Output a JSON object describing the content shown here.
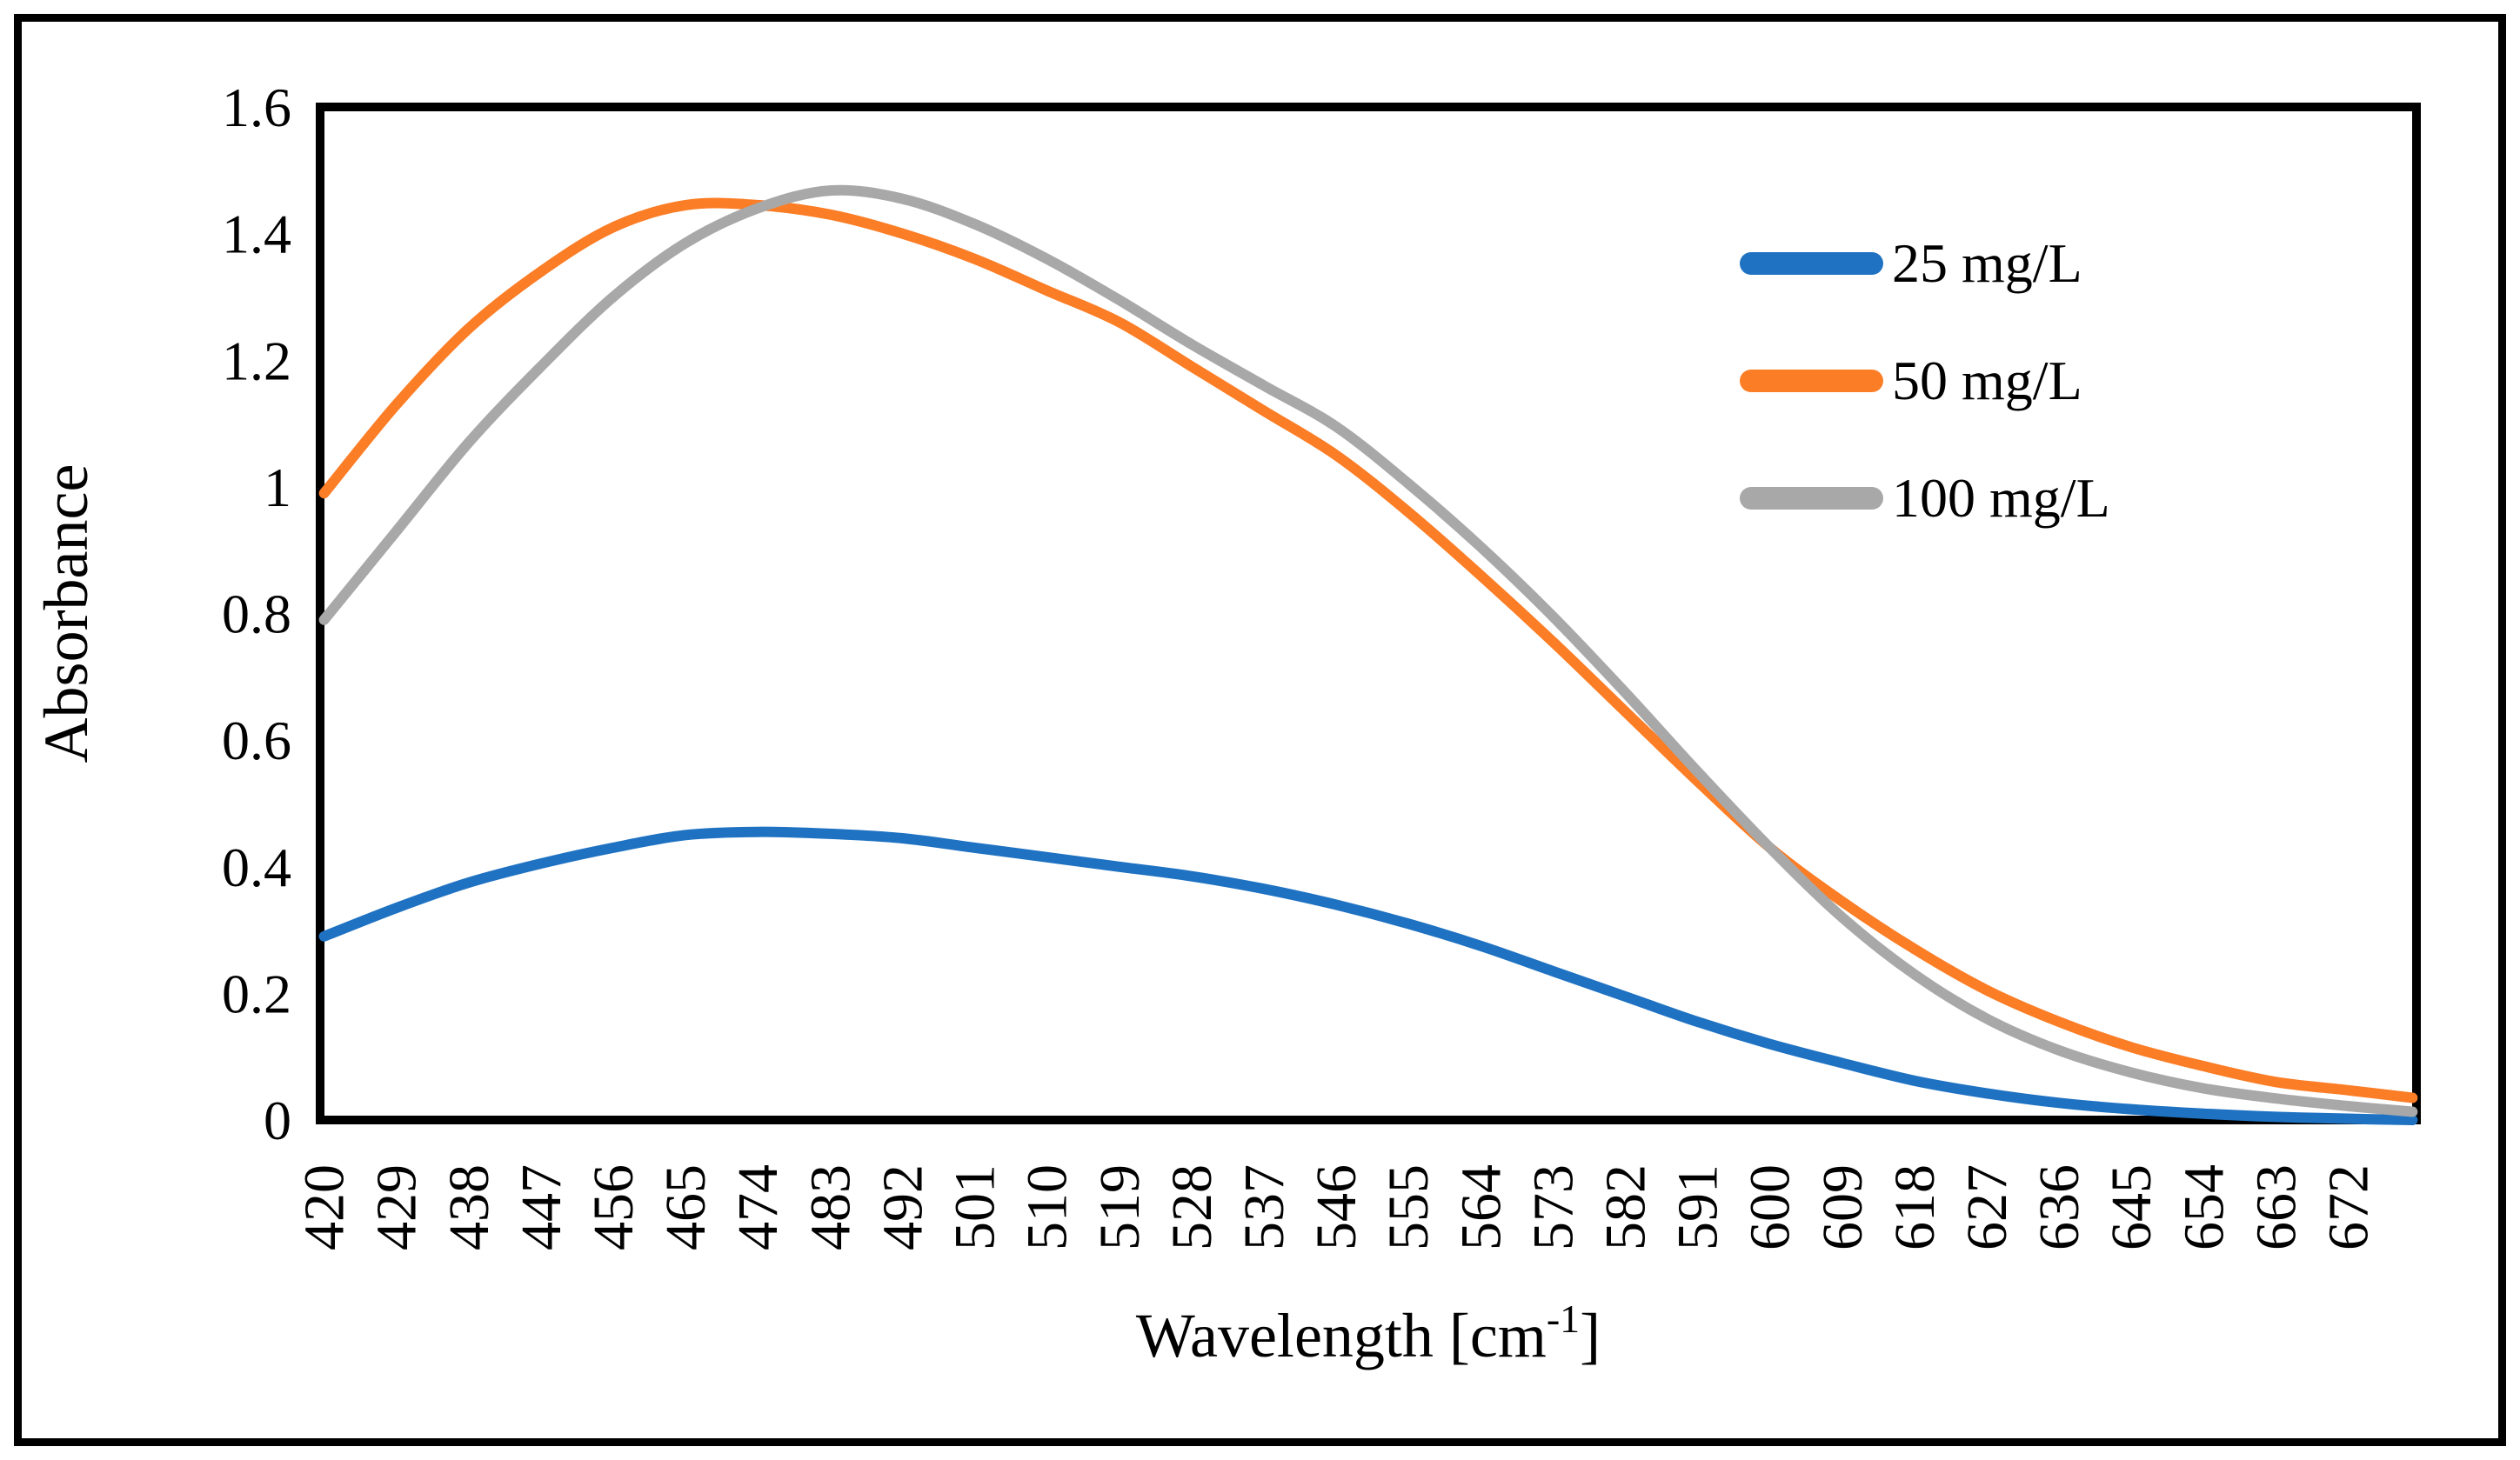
{
  "figure": {
    "background": "#ffffff",
    "border_color": "#000000"
  },
  "chart_data": {
    "type": "line",
    "title": "",
    "xlabel": "Wavelength [cm-1]",
    "xlabel_base": "Wavelength [cm",
    "xlabel_sup": "-1",
    "xlabel_end": "]",
    "ylabel": "Absorbance",
    "xlim": [
      420,
      680
    ],
    "ylim": [
      0,
      1.6
    ],
    "grid": false,
    "legend_position": "upper right inside",
    "y_tick_labels": [
      "1.6",
      "1.4",
      "1.2",
      "1",
      "0.8",
      "0.6",
      "0.4",
      "0.2",
      "0"
    ],
    "y_tick_values": [
      1.6,
      1.4,
      1.2,
      1,
      0.8,
      0.6,
      0.4,
      0.2,
      0
    ],
    "x_tick_labels": [
      "420",
      "429",
      "438",
      "447",
      "456",
      "465",
      "474",
      "483",
      "492",
      "501",
      "510",
      "519",
      "528",
      "537",
      "546",
      "555",
      "564",
      "573",
      "582",
      "591",
      "600",
      "609",
      "618",
      "627",
      "636",
      "645",
      "654",
      "663",
      "672"
    ],
    "x": [
      420,
      429,
      438,
      447,
      456,
      465,
      474,
      483,
      492,
      501,
      510,
      519,
      528,
      537,
      546,
      555,
      564,
      573,
      582,
      591,
      600,
      609,
      618,
      627,
      636,
      645,
      654,
      663,
      672,
      680
    ],
    "series": [
      {
        "name": "25 mg/L",
        "color": "#1F72C2",
        "values": [
          0.29,
          0.335,
          0.375,
          0.405,
          0.43,
          0.45,
          0.455,
          0.452,
          0.445,
          0.43,
          0.415,
          0.4,
          0.385,
          0.365,
          0.34,
          0.31,
          0.275,
          0.235,
          0.195,
          0.155,
          0.12,
          0.09,
          0.062,
          0.042,
          0.027,
          0.017,
          0.01,
          0.005,
          0.002,
          0.0
        ]
      },
      {
        "name": "50 mg/L",
        "color": "#FB7D26",
        "values": [
          0.99,
          1.13,
          1.25,
          1.34,
          1.41,
          1.445,
          1.445,
          1.43,
          1.4,
          1.36,
          1.31,
          1.26,
          1.19,
          1.12,
          1.05,
          0.96,
          0.86,
          0.755,
          0.645,
          0.535,
          0.43,
          0.345,
          0.27,
          0.205,
          0.155,
          0.115,
          0.085,
          0.06,
          0.047,
          0.035
        ]
      },
      {
        "name": "100 mg/L",
        "color": "#A8A8A8",
        "values": [
          0.79,
          0.93,
          1.07,
          1.19,
          1.3,
          1.385,
          1.44,
          1.468,
          1.455,
          1.415,
          1.36,
          1.295,
          1.225,
          1.16,
          1.095,
          1.005,
          0.905,
          0.795,
          0.675,
          0.55,
          0.43,
          0.32,
          0.23,
          0.16,
          0.11,
          0.075,
          0.05,
          0.034,
          0.022,
          0.013
        ]
      }
    ]
  }
}
